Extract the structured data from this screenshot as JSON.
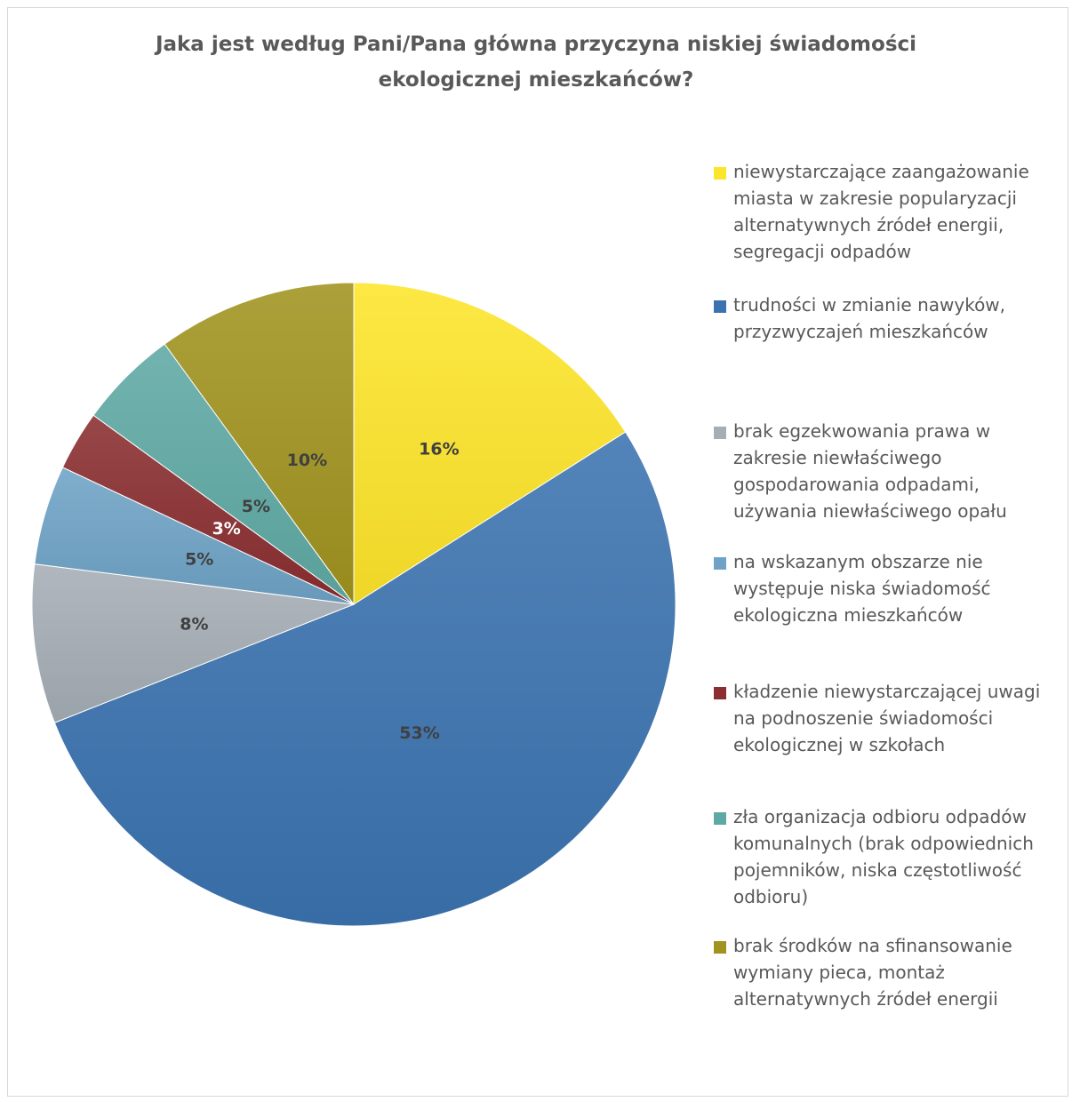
{
  "chart_data": {
    "type": "pie",
    "title": "Jaka jest według Pani/Pana główna przyczyna niskiej świadomości\nekologicznej mieszkańców?",
    "legend_position": "right",
    "categories": [
      "niewystarczające zaangażowanie\nmiasta w zakresie popularyzacji\nalternatywnych źródeł energii,\nsegregacji odpadów",
      "trudności w zmianie nawyków,\nprzyzwyczajeń mieszkańców",
      "brak egzekwowania prawa w\nzakresie niewłaściwego\ngospodarowania odpadami,\nużywania niewłaściwego opału",
      "na wskazanym obszarze nie\nwystępuje niska świadomość\nekologiczna mieszkańców",
      "kładzenie niewystarczającej uwagi\nna podnoszenie świadomości\nekologicznej w szkołach",
      "zła organizacja odbioru odpadów\nkomunalnych (brak odpowiednich\npojemników, niska częstotliwość\nodbioru)",
      "brak środków na sfinansowanie\nwymiany pieca, montaż\nalternatywnych źródeł energii"
    ],
    "values": [
      16,
      53,
      8,
      5,
      3,
      5,
      10
    ],
    "data_labels": [
      "16%",
      "53%",
      "8%",
      "5%",
      "3%",
      "5%",
      "10%"
    ],
    "colors": [
      "#FDE52A",
      "#3B73B0",
      "#A5ADB5",
      "#6FA3C6",
      "#8A2E30",
      "#5FA9A4",
      "#A1931F"
    ],
    "label_colors": [
      "#404040",
      "#404040",
      "#404040",
      "#404040",
      "#FFFFFF",
      "#404040",
      "#404040"
    ]
  }
}
